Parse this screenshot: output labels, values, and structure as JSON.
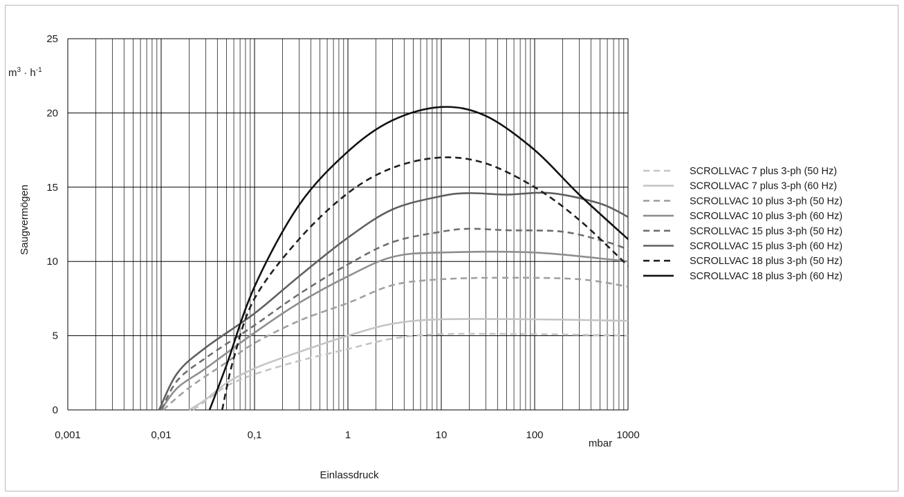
{
  "chart_data": {
    "type": "line",
    "title": "",
    "xlabel": "Einlassdruck",
    "x_unit": "mbar",
    "ylabel": "Saugvermögen",
    "y_unit_base": "m",
    "y_unit_sup1": "3",
    "y_unit_mid": " · h",
    "y_unit_sup2": "-1",
    "x_scale": "log",
    "xlim": [
      0.001,
      1000
    ],
    "ylim": [
      0,
      25
    ],
    "x_ticks": [
      "0,001",
      "0,01",
      "0,1",
      "1",
      "10",
      "100",
      "1000"
    ],
    "y_ticks": [
      "0",
      "5",
      "10",
      "15",
      "20",
      "25"
    ],
    "grid": true,
    "legend_position": "right",
    "series": [
      {
        "name": "SCROLLVAC 7 plus 3-ph (50 Hz)",
        "color": "#c4c4c4",
        "dash": true,
        "points": [
          [
            0.022,
            0
          ],
          [
            0.03,
            0.6
          ],
          [
            0.05,
            1.6
          ],
          [
            0.1,
            2.4
          ],
          [
            0.3,
            3.3
          ],
          [
            1,
            4.1
          ],
          [
            3,
            4.8
          ],
          [
            10,
            5.1
          ],
          [
            100,
            5.1
          ],
          [
            1000,
            5.0
          ]
        ]
      },
      {
        "name": "SCROLLVAC 7 plus 3-ph (60 Hz)",
        "color": "#c4c4c4",
        "dash": false,
        "points": [
          [
            0.02,
            0
          ],
          [
            0.03,
            0.7
          ],
          [
            0.05,
            1.8
          ],
          [
            0.1,
            2.8
          ],
          [
            0.3,
            3.9
          ],
          [
            1,
            5.0
          ],
          [
            3,
            5.8
          ],
          [
            10,
            6.1
          ],
          [
            100,
            6.1
          ],
          [
            1000,
            6.0
          ]
        ]
      },
      {
        "name": "SCROLLVAC 10 plus 3-ph (50 Hz)",
        "color": "#a0a0a0",
        "dash": true,
        "points": [
          [
            0.0105,
            0
          ],
          [
            0.02,
            1.5
          ],
          [
            0.05,
            3.2
          ],
          [
            0.1,
            4.5
          ],
          [
            0.3,
            6.0
          ],
          [
            1,
            7.2
          ],
          [
            3,
            8.4
          ],
          [
            10,
            8.8
          ],
          [
            50,
            8.9
          ],
          [
            300,
            8.8
          ],
          [
            1000,
            8.3
          ]
        ]
      },
      {
        "name": "SCROLLVAC 10 plus 3-ph (60 Hz)",
        "color": "#8e8e8e",
        "dash": false,
        "points": [
          [
            0.01,
            0
          ],
          [
            0.015,
            1.5
          ],
          [
            0.03,
            2.8
          ],
          [
            0.1,
            5.2
          ],
          [
            0.3,
            7.2
          ],
          [
            1,
            9.0
          ],
          [
            3,
            10.3
          ],
          [
            10,
            10.6
          ],
          [
            100,
            10.6
          ],
          [
            1000,
            10.0
          ]
        ]
      },
      {
        "name": "SCROLLVAC 15 plus 3-ph (50 Hz)",
        "color": "#6e6e6e",
        "dash": true,
        "points": [
          [
            0.01,
            0
          ],
          [
            0.015,
            2.0
          ],
          [
            0.03,
            3.5
          ],
          [
            0.1,
            5.7
          ],
          [
            0.3,
            7.8
          ],
          [
            1,
            9.8
          ],
          [
            3,
            11.3
          ],
          [
            10,
            12.0
          ],
          [
            20,
            12.2
          ],
          [
            50,
            12.1
          ],
          [
            200,
            12.0
          ],
          [
            600,
            11.3
          ],
          [
            1000,
            10.8
          ]
        ]
      },
      {
        "name": "SCROLLVAC 15 plus 3-ph (60 Hz)",
        "color": "#5f5f5f",
        "dash": false,
        "points": [
          [
            0.0095,
            0
          ],
          [
            0.015,
            2.5
          ],
          [
            0.03,
            4.2
          ],
          [
            0.1,
            6.5
          ],
          [
            0.3,
            9.0
          ],
          [
            1,
            11.6
          ],
          [
            3,
            13.5
          ],
          [
            10,
            14.4
          ],
          [
            20,
            14.6
          ],
          [
            50,
            14.5
          ],
          [
            150,
            14.6
          ],
          [
            500,
            13.9
          ],
          [
            1000,
            13.0
          ]
        ]
      },
      {
        "name": "SCROLLVAC 18 plus 3-ph (50 Hz)",
        "color": "#1f1f1f",
        "dash": true,
        "points": [
          [
            0.045,
            0
          ],
          [
            0.06,
            3.5
          ],
          [
            0.1,
            7.5
          ],
          [
            0.3,
            11.5
          ],
          [
            1,
            14.6
          ],
          [
            3,
            16.3
          ],
          [
            10,
            17.0
          ],
          [
            30,
            16.6
          ],
          [
            100,
            15.0
          ],
          [
            300,
            12.8
          ],
          [
            1000,
            9.7
          ]
        ]
      },
      {
        "name": "SCROLLVAC 18 plus 3-ph (60 Hz)",
        "color": "#111111",
        "dash": false,
        "points": [
          [
            0.033,
            0
          ],
          [
            0.05,
            3.0
          ],
          [
            0.1,
            8.3
          ],
          [
            0.3,
            13.8
          ],
          [
            1,
            17.4
          ],
          [
            3,
            19.5
          ],
          [
            10,
            20.4
          ],
          [
            30,
            19.8
          ],
          [
            100,
            17.5
          ],
          [
            300,
            14.5
          ],
          [
            1000,
            11.5
          ]
        ]
      }
    ]
  }
}
